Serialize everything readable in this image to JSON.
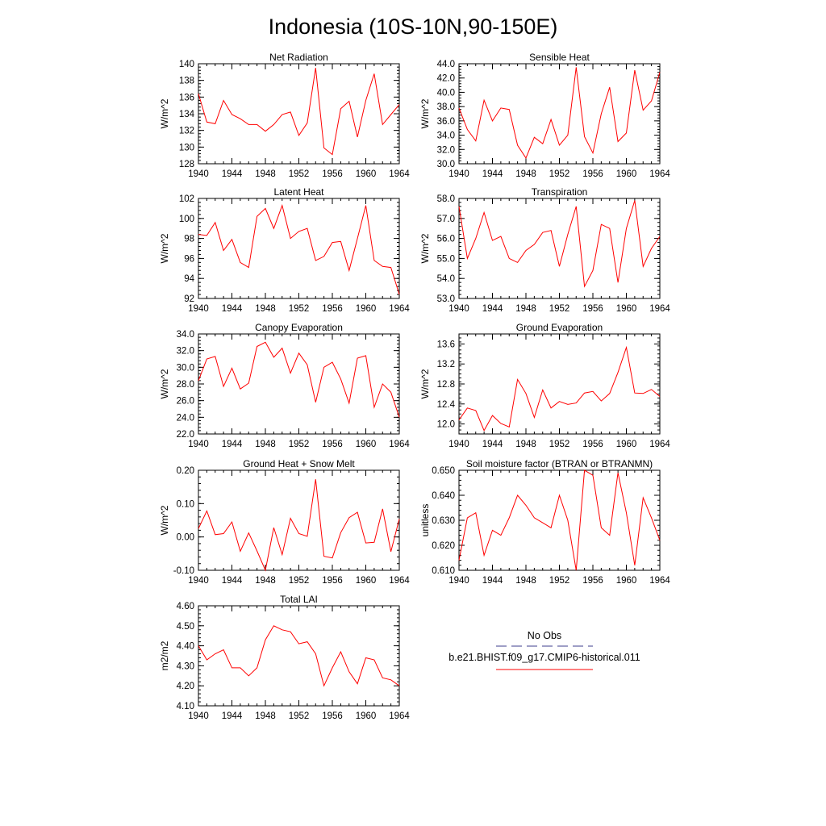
{
  "figure": {
    "title": "Indonesia (10S-10N,90-150E)"
  },
  "legend": {
    "obs_label": "No Obs",
    "obs_color": "#3c3c8c",
    "model_label": "b.e21.BHIST.f09_g17.CMIP6-historical.011",
    "model_color": "#ff0000"
  },
  "chart_data": [
    {
      "type": "line",
      "title": "Net Radiation",
      "ylabel": "W/m^2",
      "xlim": [
        1940,
        1964
      ],
      "ylim": [
        128,
        140
      ],
      "xticks": [
        1940,
        1944,
        1948,
        1952,
        1956,
        1960,
        1964
      ],
      "xtick_labels": [
        "1940",
        "1944",
        "1948",
        "1952",
        "1956",
        "1960",
        "1964"
      ],
      "yticks": [
        128,
        130,
        132,
        134,
        136,
        138,
        140
      ],
      "ytick_labels": [
        "128",
        "130",
        "132",
        "134",
        "136",
        "138",
        "140"
      ],
      "series": [
        {
          "color": "#ff0000",
          "x": [
            1940,
            1941,
            1942,
            1943,
            1944,
            1945,
            1946,
            1947,
            1948,
            1949,
            1950,
            1951,
            1952,
            1953,
            1954,
            1955,
            1956,
            1957,
            1958,
            1959,
            1960,
            1961,
            1962,
            1963,
            1964
          ],
          "values": [
            136.4,
            133.0,
            132.8,
            135.6,
            133.9,
            133.4,
            132.7,
            132.7,
            131.9,
            132.7,
            133.9,
            134.2,
            131.4,
            132.9,
            139.5,
            129.9,
            129.1,
            134.6,
            135.5,
            131.2,
            135.6,
            138.8,
            132.7,
            133.9,
            135.1
          ]
        }
      ]
    },
    {
      "type": "line",
      "title": "Sensible Heat",
      "ylabel": "W/m^2",
      "xlim": [
        1940,
        1964
      ],
      "ylim": [
        30,
        44
      ],
      "xticks": [
        1940,
        1944,
        1948,
        1952,
        1956,
        1960,
        1964
      ],
      "xtick_labels": [
        "1940",
        "1944",
        "1948",
        "1952",
        "1956",
        "1960",
        "1964"
      ],
      "yticks": [
        30,
        32,
        34,
        36,
        38,
        40,
        42,
        44
      ],
      "ytick_labels": [
        "30.0",
        "32.0",
        "34.0",
        "36.0",
        "38.0",
        "40.0",
        "42.0",
        "44.0"
      ],
      "series": [
        {
          "color": "#ff0000",
          "x": [
            1940,
            1941,
            1942,
            1943,
            1944,
            1945,
            1946,
            1947,
            1948,
            1949,
            1950,
            1951,
            1952,
            1953,
            1954,
            1955,
            1956,
            1957,
            1958,
            1959,
            1960,
            1961,
            1962,
            1963,
            1964
          ],
          "values": [
            37.8,
            34.8,
            33.2,
            38.9,
            36.0,
            37.8,
            37.6,
            32.6,
            30.8,
            33.7,
            32.8,
            36.2,
            32.6,
            34.0,
            43.5,
            33.8,
            31.5,
            37.0,
            40.7,
            33.1,
            34.3,
            43.1,
            37.5,
            38.8,
            42.8
          ]
        }
      ]
    },
    {
      "type": "line",
      "title": "Latent Heat",
      "ylabel": "W/m^2",
      "xlim": [
        1940,
        1964
      ],
      "ylim": [
        92,
        102
      ],
      "xticks": [
        1940,
        1944,
        1948,
        1952,
        1956,
        1960,
        1964
      ],
      "xtick_labels": [
        "1940",
        "1944",
        "1948",
        "1952",
        "1956",
        "1960",
        "1964"
      ],
      "yticks": [
        92,
        94,
        96,
        98,
        100,
        102
      ],
      "ytick_labels": [
        "92",
        "94",
        "96",
        "98",
        "100",
        "102"
      ],
      "series": [
        {
          "color": "#ff0000",
          "x": [
            1940,
            1941,
            1942,
            1943,
            1944,
            1945,
            1946,
            1947,
            1948,
            1949,
            1950,
            1951,
            1952,
            1953,
            1954,
            1955,
            1956,
            1957,
            1958,
            1959,
            1960,
            1961,
            1962,
            1963,
            1964
          ],
          "values": [
            98.4,
            98.3,
            99.6,
            96.8,
            97.9,
            95.6,
            95.1,
            100.2,
            101.0,
            99.0,
            101.3,
            98.0,
            98.7,
            99.0,
            95.8,
            96.2,
            97.6,
            97.7,
            94.8,
            98.0,
            101.3,
            95.8,
            95.2,
            95.1,
            92.4
          ]
        }
      ]
    },
    {
      "type": "line",
      "title": "Transpiration",
      "ylabel": "W/m^2",
      "xlim": [
        1940,
        1964
      ],
      "ylim": [
        53,
        58
      ],
      "xticks": [
        1940,
        1944,
        1948,
        1952,
        1956,
        1960,
        1964
      ],
      "xtick_labels": [
        "1940",
        "1944",
        "1948",
        "1952",
        "1956",
        "1960",
        "1964"
      ],
      "yticks": [
        53,
        54,
        55,
        56,
        57,
        58
      ],
      "ytick_labels": [
        "53.0",
        "54.0",
        "55.0",
        "56.0",
        "57.0",
        "58.0"
      ],
      "series": [
        {
          "color": "#ff0000",
          "x": [
            1940,
            1941,
            1942,
            1943,
            1944,
            1945,
            1946,
            1947,
            1948,
            1949,
            1950,
            1951,
            1952,
            1953,
            1954,
            1955,
            1956,
            1957,
            1958,
            1959,
            1960,
            1961,
            1962,
            1963,
            1964
          ],
          "values": [
            57.6,
            55.0,
            56.0,
            57.3,
            55.9,
            56.1,
            55.0,
            54.8,
            55.4,
            55.7,
            56.3,
            56.4,
            54.6,
            56.2,
            57.6,
            53.6,
            54.4,
            56.7,
            56.5,
            53.8,
            56.5,
            57.9,
            54.6,
            55.5,
            56.1
          ]
        }
      ]
    },
    {
      "type": "line",
      "title": "Canopy Evaporation",
      "ylabel": "W/m^2",
      "xlim": [
        1940,
        1964
      ],
      "ylim": [
        22,
        34
      ],
      "xticks": [
        1940,
        1944,
        1948,
        1952,
        1956,
        1960,
        1964
      ],
      "xtick_labels": [
        "1940",
        "1944",
        "1948",
        "1952",
        "1956",
        "1960",
        "1964"
      ],
      "yticks": [
        22,
        24,
        26,
        28,
        30,
        32,
        34
      ],
      "ytick_labels": [
        "22.0",
        "24.0",
        "26.0",
        "28.0",
        "30.0",
        "32.0",
        "34.0"
      ],
      "series": [
        {
          "color": "#ff0000",
          "x": [
            1940,
            1941,
            1942,
            1943,
            1944,
            1945,
            1946,
            1947,
            1948,
            1949,
            1950,
            1951,
            1952,
            1953,
            1954,
            1955,
            1956,
            1957,
            1958,
            1959,
            1960,
            1961,
            1962,
            1963,
            1964
          ],
          "values": [
            28.4,
            31.0,
            31.3,
            27.7,
            29.9,
            27.4,
            28.1,
            32.5,
            33.0,
            31.2,
            32.3,
            29.3,
            31.7,
            30.3,
            25.8,
            30.0,
            30.6,
            28.6,
            25.7,
            31.1,
            31.4,
            25.2,
            28.0,
            27.0,
            24.0
          ]
        }
      ]
    },
    {
      "type": "line",
      "title": "Ground Evaporation",
      "ylabel": "W/m^2",
      "xlim": [
        1940,
        1964
      ],
      "ylim": [
        11.8,
        13.8
      ],
      "xticks": [
        1940,
        1944,
        1948,
        1952,
        1956,
        1960,
        1964
      ],
      "xtick_labels": [
        "1940",
        "1944",
        "1948",
        "1952",
        "1956",
        "1960",
        "1964"
      ],
      "yticks": [
        12.0,
        12.4,
        12.8,
        13.2,
        13.6
      ],
      "ytick_labels": [
        "12.0",
        "12.4",
        "12.8",
        "13.2",
        "13.6"
      ],
      "series": [
        {
          "color": "#ff0000",
          "x": [
            1940,
            1941,
            1942,
            1943,
            1944,
            1945,
            1946,
            1947,
            1948,
            1949,
            1950,
            1951,
            1952,
            1953,
            1954,
            1955,
            1956,
            1957,
            1958,
            1959,
            1960,
            1961,
            1962,
            1963,
            1964
          ],
          "values": [
            12.08,
            12.32,
            12.27,
            11.87,
            12.17,
            12.01,
            11.94,
            12.89,
            12.61,
            12.13,
            12.68,
            12.32,
            12.45,
            12.39,
            12.42,
            12.62,
            12.65,
            12.46,
            12.61,
            13.03,
            13.53,
            12.62,
            12.61,
            12.69,
            12.55
          ]
        }
      ]
    },
    {
      "type": "line",
      "title": "Ground Heat + Snow Melt",
      "ylabel": "W/m^2",
      "xlim": [
        1940,
        1964
      ],
      "ylim": [
        -0.1,
        0.2
      ],
      "xticks": [
        1940,
        1944,
        1948,
        1952,
        1956,
        1960,
        1964
      ],
      "xtick_labels": [
        "1940",
        "1944",
        "1948",
        "1952",
        "1956",
        "1960",
        "1964"
      ],
      "yticks": [
        -0.1,
        0.0,
        0.1,
        0.2
      ],
      "ytick_labels": [
        "-0.10",
        "0.00",
        "0.10",
        "0.20"
      ],
      "series": [
        {
          "color": "#ff0000",
          "x": [
            1940,
            1941,
            1942,
            1943,
            1944,
            1945,
            1946,
            1947,
            1948,
            1949,
            1950,
            1951,
            1952,
            1953,
            1954,
            1955,
            1956,
            1957,
            1958,
            1959,
            1960,
            1961,
            1962,
            1963,
            1964
          ],
          "values": [
            0.025,
            0.078,
            0.007,
            0.01,
            0.045,
            -0.043,
            0.012,
            -0.042,
            -0.1,
            0.028,
            -0.053,
            0.056,
            0.01,
            0.002,
            0.173,
            -0.058,
            -0.063,
            0.013,
            0.058,
            0.074,
            -0.018,
            -0.016,
            0.084,
            -0.044,
            0.054
          ]
        }
      ]
    },
    {
      "type": "line",
      "title": "Soil moisture factor (BTRAN or BTRANMN)",
      "ylabel": "unitless",
      "xlim": [
        1940,
        1964
      ],
      "ylim": [
        0.61,
        0.65
      ],
      "xticks": [
        1940,
        1944,
        1948,
        1952,
        1956,
        1960,
        1964
      ],
      "xtick_labels": [
        "1940",
        "1944",
        "1948",
        "1952",
        "1956",
        "1960",
        "1964"
      ],
      "yticks": [
        0.61,
        0.62,
        0.63,
        0.64,
        0.65
      ],
      "ytick_labels": [
        "0.610",
        "0.620",
        "0.630",
        "0.640",
        "0.650"
      ],
      "series": [
        {
          "color": "#ff0000",
          "x": [
            1940,
            1941,
            1942,
            1943,
            1944,
            1945,
            1946,
            1947,
            1948,
            1949,
            1950,
            1951,
            1952,
            1953,
            1954,
            1955,
            1956,
            1957,
            1958,
            1959,
            1960,
            1961,
            1962,
            1963,
            1964
          ],
          "values": [
            0.614,
            0.631,
            0.633,
            0.616,
            0.626,
            0.624,
            0.631,
            0.64,
            0.636,
            0.631,
            0.629,
            0.627,
            0.64,
            0.63,
            0.61,
            0.65,
            0.648,
            0.627,
            0.624,
            0.649,
            0.633,
            0.612,
            0.639,
            0.631,
            0.622
          ]
        }
      ]
    },
    {
      "type": "line",
      "title": "Total LAI",
      "ylabel": "m2/m2",
      "xlim": [
        1940,
        1964
      ],
      "ylim": [
        4.1,
        4.6
      ],
      "xticks": [
        1940,
        1944,
        1948,
        1952,
        1956,
        1960,
        1964
      ],
      "xtick_labels": [
        "1940",
        "1944",
        "1948",
        "1952",
        "1956",
        "1960",
        "1964"
      ],
      "yticks": [
        4.1,
        4.2,
        4.3,
        4.4,
        4.5,
        4.6
      ],
      "ytick_labels": [
        "4.10",
        "4.20",
        "4.30",
        "4.40",
        "4.50",
        "4.60"
      ],
      "series": [
        {
          "color": "#ff0000",
          "x": [
            1940,
            1941,
            1942,
            1943,
            1944,
            1945,
            1946,
            1947,
            1948,
            1949,
            1950,
            1951,
            1952,
            1953,
            1954,
            1955,
            1956,
            1957,
            1958,
            1959,
            1960,
            1961,
            1962,
            1963,
            1964
          ],
          "values": [
            4.4,
            4.33,
            4.36,
            4.38,
            4.29,
            4.29,
            4.25,
            4.29,
            4.43,
            4.5,
            4.48,
            4.47,
            4.41,
            4.42,
            4.36,
            4.2,
            4.29,
            4.37,
            4.27,
            4.21,
            4.34,
            4.33,
            4.24,
            4.23,
            4.2
          ]
        }
      ]
    }
  ]
}
